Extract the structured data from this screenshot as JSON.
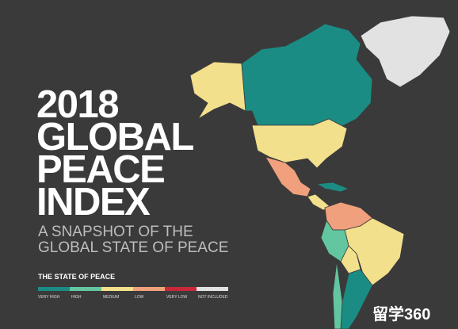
{
  "title": {
    "lines": [
      "2018",
      "GLOBAL",
      "PEACE",
      "INDEX"
    ]
  },
  "subtitle": {
    "lines": [
      "A SNAPSHOT OF THE",
      "GLOBAL STATE OF PEACE"
    ]
  },
  "legend": {
    "title": "THE STATE OF PEACE",
    "items": [
      {
        "label": "VERY HIGH",
        "color": "#1b8c84"
      },
      {
        "label": "HIGH",
        "color": "#63c6a0"
      },
      {
        "label": "MEDIUM",
        "color": "#f3e08c"
      },
      {
        "label": "LOW",
        "color": "#f0a07c"
      },
      {
        "label": "VERY LOW",
        "color": "#c9283a"
      },
      {
        "label": "NOT INCLUDED",
        "color": "#e2e2e2"
      }
    ]
  },
  "watermark": "留学360"
}
